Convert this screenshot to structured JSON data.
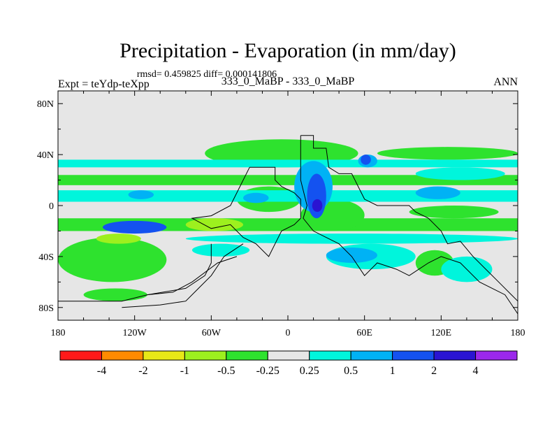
{
  "chart_data": {
    "type": "heatmap",
    "title": "Precipitation - Evaporation (in mm/day)",
    "stats_line": "rmsd= 0.459825 diff= 0.000141806",
    "left_label": "Expt = teYdp-teXpp",
    "center_label": "333_0_MaBP - 333_0_MaBP",
    "right_label": "ANN",
    "x_ticks": [
      {
        "lon": -180,
        "label": "180"
      },
      {
        "lon": -120,
        "label": "120W"
      },
      {
        "lon": -60,
        "label": "60W"
      },
      {
        "lon": 0,
        "label": "0"
      },
      {
        "lon": 60,
        "label": "60E"
      },
      {
        "lon": 120,
        "label": "120E"
      },
      {
        "lon": 180,
        "label": "180"
      }
    ],
    "y_ticks": [
      {
        "lat": 80,
        "label": "80N"
      },
      {
        "lat": 40,
        "label": "40N"
      },
      {
        "lat": 0,
        "label": "0"
      },
      {
        "lat": -40,
        "label": "40S"
      },
      {
        "lat": -80,
        "label": "80S"
      }
    ],
    "xlim": [
      -180,
      180
    ],
    "ylim": [
      -90,
      90
    ],
    "colorbar": {
      "colors": [
        "#ff1a1a",
        "#ff8a00",
        "#e8e817",
        "#9df01e",
        "#2ee22e",
        "#e6e6e6",
        "#00f5dc",
        "#00b2f5",
        "#1452f0",
        "#2a14d2",
        "#9b28eb"
      ],
      "labels": [
        "-4",
        "-2",
        "-1",
        "-0.5",
        "-0.25",
        "0.25",
        "0.5",
        "1",
        "2",
        "4"
      ]
    },
    "background_color": "#e6e6e6",
    "patches": [
      {
        "level": "-0.5",
        "lon": [
          -180,
          180
        ],
        "lat": [
          16,
          24
        ],
        "note": "northern subtropical dry band"
      },
      {
        "level": "-0.5",
        "lon": [
          -180,
          180
        ],
        "lat": [
          -20,
          -10
        ],
        "note": "southern subtropical dry band"
      },
      {
        "level": "-1",
        "lon": [
          -80,
          -35
        ],
        "lat": [
          -20,
          -10
        ]
      },
      {
        "level": "-0.5",
        "lon": [
          -65,
          55
        ],
        "lat": [
          30,
          52
        ],
        "note": "northern midlatitude dry band"
      },
      {
        "level": "-0.5",
        "lon": [
          70,
          180
        ],
        "lat": [
          36,
          46
        ]
      },
      {
        "level": "-0.5",
        "lon": [
          -180,
          -95
        ],
        "lat": [
          -60,
          -25
        ],
        "note": "south pacific dry region"
      },
      {
        "level": "-1",
        "lon": [
          -150,
          -115
        ],
        "lat": [
          -30,
          -22
        ]
      },
      {
        "level": "-0.5",
        "lon": [
          -40,
          10
        ],
        "lat": [
          -5,
          15
        ]
      },
      {
        "level": "-0.5",
        "lon": [
          10,
          60
        ],
        "lat": [
          -20,
          5
        ]
      },
      {
        "level": "-0.5",
        "lon": [
          95,
          165
        ],
        "lat": [
          -10,
          0
        ]
      },
      {
        "level": "-0.5",
        "lon": [
          100,
          130
        ],
        "lat": [
          -55,
          -35
        ]
      },
      {
        "level": "-0.5",
        "lon": [
          -160,
          -110
        ],
        "lat": [
          -75,
          -65
        ]
      },
      {
        "level": "0.5",
        "lon": [
          -180,
          180
        ],
        "lat": [
          3,
          12
        ],
        "note": "northern ITCZ wet band"
      },
      {
        "level": "0.5",
        "lon": [
          -180,
          180
        ],
        "lat": [
          30,
          36
        ]
      },
      {
        "level": "0.5",
        "lon": [
          -80,
          180
        ],
        "lat": [
          -30,
          -22
        ]
      },
      {
        "level": "0.5",
        "lon": [
          -75,
          -30
        ],
        "lat": [
          -40,
          -30
        ]
      },
      {
        "level": "0.5",
        "lon": [
          30,
          100
        ],
        "lat": [
          -50,
          -30
        ]
      },
      {
        "level": "0.5",
        "lon": [
          120,
          160
        ],
        "lat": [
          -60,
          -40
        ]
      },
      {
        "level": "0.5",
        "lon": [
          100,
          170
        ],
        "lat": [
          20,
          30
        ]
      },
      {
        "level": "1",
        "lon": [
          -125,
          -105
        ],
        "lat": [
          5,
          12
        ]
      },
      {
        "level": "1",
        "lon": [
          -35,
          -15
        ],
        "lat": [
          2,
          10
        ]
      },
      {
        "level": "1",
        "lon": [
          5,
          35
        ],
        "lat": [
          -5,
          35
        ]
      },
      {
        "level": "1",
        "lon": [
          30,
          70
        ],
        "lat": [
          -45,
          -33
        ]
      },
      {
        "level": "1",
        "lon": [
          100,
          135
        ],
        "lat": [
          5,
          15
        ]
      },
      {
        "level": "1",
        "lon": [
          55,
          70
        ],
        "lat": [
          30,
          40
        ]
      },
      {
        "level": "2",
        "lon": [
          -145,
          -95
        ],
        "lat": [
          -22,
          -12
        ],
        "note": "strong wet patch south pacific"
      },
      {
        "level": "2",
        "lon": [
          15,
          30
        ],
        "lat": [
          -10,
          25
        ]
      },
      {
        "level": "2",
        "lon": [
          57,
          65
        ],
        "lat": [
          32,
          40
        ]
      },
      {
        "level": "4",
        "lon": [
          19,
          27
        ],
        "lat": [
          -5,
          5
        ]
      }
    ],
    "land_outlines": [
      {
        "name": "western continent",
        "points": [
          [
            -30,
            30
          ],
          [
            -10,
            30
          ],
          [
            -10,
            20
          ],
          [
            -5,
            15
          ],
          [
            5,
            10
          ],
          [
            10,
            5
          ],
          [
            10,
            -10
          ],
          [
            5,
            -15
          ],
          [
            -5,
            -20
          ],
          [
            -10,
            -30
          ],
          [
            -15,
            -40
          ],
          [
            -25,
            -30
          ],
          [
            -35,
            -25
          ],
          [
            -45,
            -15
          ],
          [
            -60,
            -18
          ],
          [
            -75,
            -10
          ],
          [
            -60,
            -8
          ],
          [
            -45,
            0
          ],
          [
            -35,
            20
          ],
          [
            -30,
            30
          ]
        ]
      },
      {
        "name": "central continent",
        "points": [
          [
            10,
            55
          ],
          [
            20,
            55
          ],
          [
            20,
            45
          ],
          [
            30,
            45
          ],
          [
            32,
            30
          ],
          [
            40,
            25
          ],
          [
            50,
            25
          ],
          [
            60,
            5
          ],
          [
            70,
            0
          ],
          [
            95,
            0
          ],
          [
            100,
            -5
          ],
          [
            110,
            -10
          ],
          [
            120,
            -20
          ],
          [
            125,
            -30
          ],
          [
            135,
            -28
          ],
          [
            145,
            -40
          ],
          [
            155,
            -50
          ],
          [
            165,
            -60
          ],
          [
            175,
            -70
          ],
          [
            180,
            -75
          ],
          [
            180,
            -85
          ],
          [
            170,
            -70
          ],
          [
            150,
            -60
          ],
          [
            135,
            -45
          ],
          [
            120,
            -40
          ],
          [
            110,
            -45
          ],
          [
            95,
            -55
          ],
          [
            85,
            -50
          ],
          [
            70,
            -45
          ],
          [
            60,
            -55
          ],
          [
            50,
            -40
          ],
          [
            40,
            -30
          ],
          [
            30,
            -25
          ],
          [
            20,
            -20
          ],
          [
            12,
            -10
          ],
          [
            15,
            0
          ],
          [
            10,
            20
          ],
          [
            10,
            40
          ],
          [
            10,
            55
          ]
        ]
      },
      {
        "name": "southern strip a",
        "points": [
          [
            -180,
            -75
          ],
          [
            -130,
            -75
          ],
          [
            -110,
            -70
          ],
          [
            -80,
            -65
          ],
          [
            -65,
            -55
          ],
          [
            -60,
            -45
          ],
          [
            -60,
            -30
          ]
        ]
      },
      {
        "name": "southern strip b",
        "points": [
          [
            -130,
            -80
          ],
          [
            -100,
            -78
          ],
          [
            -80,
            -75
          ],
          [
            -70,
            -65
          ],
          [
            -60,
            -55
          ],
          [
            -50,
            -40
          ],
          [
            -35,
            -30
          ]
        ]
      },
      {
        "name": "southern strip c",
        "points": [
          [
            -110,
            -70
          ],
          [
            -90,
            -68
          ],
          [
            -75,
            -60
          ],
          [
            -55,
            -45
          ],
          [
            -40,
            -40
          ]
        ]
      }
    ]
  }
}
